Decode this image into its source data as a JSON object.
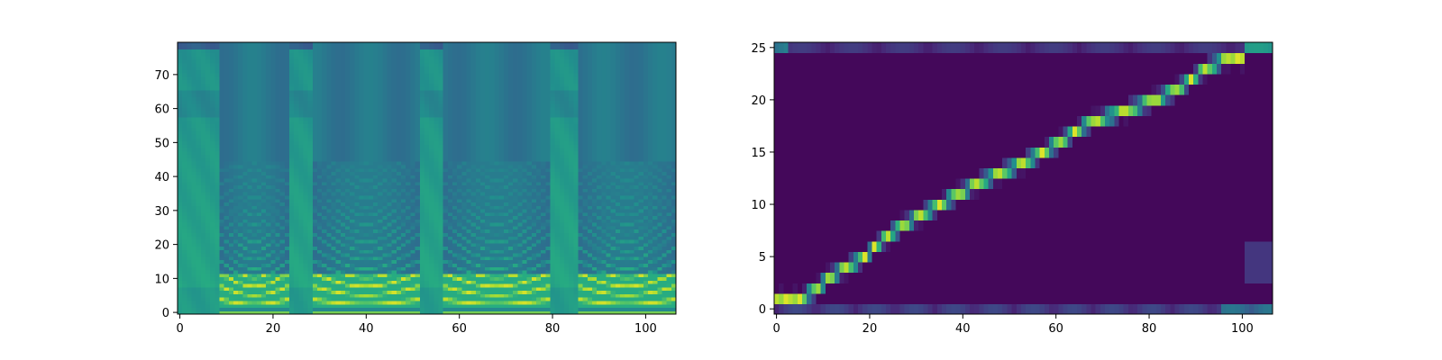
{
  "chart_data": [
    {
      "type": "heatmap",
      "title": "",
      "xlabel": "",
      "ylabel": "",
      "colormap": "viridis",
      "xlim": [
        -0.5,
        106.5
      ],
      "ylim": [
        -0.5,
        79.5
      ],
      "xticks": [
        0,
        20,
        40,
        60,
        80,
        100
      ],
      "yticks": [
        0,
        10,
        20,
        30,
        40,
        50,
        60,
        70
      ],
      "x_segments": [
        {
          "start": 0,
          "end": 8,
          "kind": "unvoiced"
        },
        {
          "start": 9,
          "end": 23,
          "kind": "voiced"
        },
        {
          "start": 24,
          "end": 28,
          "kind": "unvoiced"
        },
        {
          "start": 29,
          "end": 51,
          "kind": "voiced"
        },
        {
          "start": 52,
          "end": 56,
          "kind": "unvoiced"
        },
        {
          "start": 57,
          "end": 79,
          "kind": "voiced"
        },
        {
          "start": 80,
          "end": 85,
          "kind": "unvoiced"
        },
        {
          "start": 86,
          "end": 106,
          "kind": "voiced"
        }
      ]
    },
    {
      "type": "heatmap",
      "title": "",
      "xlabel": "",
      "ylabel": "",
      "colormap": "viridis",
      "xlim": [
        -0.5,
        106.5
      ],
      "ylim": [
        -0.5,
        25.5
      ],
      "xticks": [
        0,
        20,
        40,
        60,
        80,
        100
      ],
      "yticks": [
        0,
        5,
        10,
        15,
        20,
        25
      ],
      "alignment_path": [
        {
          "x": 0,
          "y": 1
        },
        {
          "x": 5,
          "y": 1
        },
        {
          "x": 9,
          "y": 2
        },
        {
          "x": 11,
          "y": 3
        },
        {
          "x": 15,
          "y": 4
        },
        {
          "x": 19,
          "y": 5
        },
        {
          "x": 21,
          "y": 6
        },
        {
          "x": 24,
          "y": 7
        },
        {
          "x": 27,
          "y": 8
        },
        {
          "x": 31,
          "y": 9
        },
        {
          "x": 35,
          "y": 10
        },
        {
          "x": 39,
          "y": 11
        },
        {
          "x": 43,
          "y": 12
        },
        {
          "x": 48,
          "y": 13
        },
        {
          "x": 53,
          "y": 14
        },
        {
          "x": 57,
          "y": 15
        },
        {
          "x": 61,
          "y": 16
        },
        {
          "x": 64,
          "y": 17
        },
        {
          "x": 68,
          "y": 18
        },
        {
          "x": 75,
          "y": 19
        },
        {
          "x": 81,
          "y": 20
        },
        {
          "x": 86,
          "y": 21
        },
        {
          "x": 89,
          "y": 22
        },
        {
          "x": 92,
          "y": 23
        },
        {
          "x": 97,
          "y": 24
        },
        {
          "x": 100,
          "y": 24
        }
      ]
    }
  ]
}
